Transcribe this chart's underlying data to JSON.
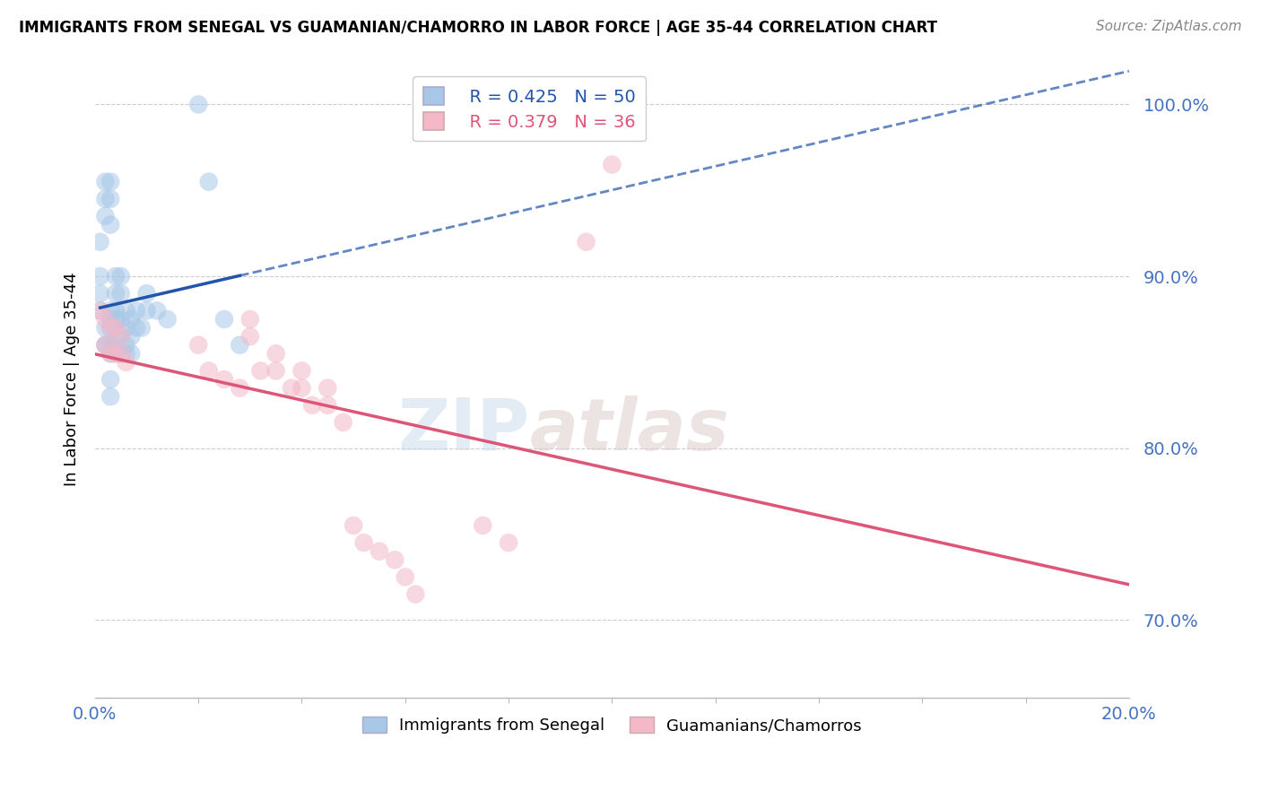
{
  "title": "IMMIGRANTS FROM SENEGAL VS GUAMANIAN/CHAMORRO IN LABOR FORCE | AGE 35-44 CORRELATION CHART",
  "source": "Source: ZipAtlas.com",
  "ylabel": "In Labor Force | Age 35-44",
  "ytick_labels": [
    "70.0%",
    "80.0%",
    "90.0%",
    "100.0%"
  ],
  "ytick_values": [
    0.7,
    0.8,
    0.9,
    1.0
  ],
  "xlim": [
    0.0,
    0.2
  ],
  "ylim": [
    0.655,
    1.025
  ],
  "blue_color": "#a8c8e8",
  "pink_color": "#f4b8c8",
  "blue_line_color": "#2255aa",
  "pink_line_color": "#dd5577",
  "legend_label_blue": "Immigrants from Senegal",
  "legend_label_pink": "Guamanians/Chamorros",
  "legend_blue_r": "R = 0.425",
  "legend_blue_n": "N = 50",
  "legend_pink_r": "R = 0.379",
  "legend_pink_n": "N = 36",
  "blue_x": [
    0.001,
    0.001,
    0.001,
    0.001,
    0.002,
    0.002,
    0.002,
    0.002,
    0.002,
    0.002,
    0.003,
    0.003,
    0.003,
    0.003,
    0.003,
    0.003,
    0.003,
    0.003,
    0.003,
    0.003,
    0.004,
    0.004,
    0.004,
    0.004,
    0.004,
    0.004,
    0.004,
    0.005,
    0.005,
    0.005,
    0.005,
    0.005,
    0.006,
    0.006,
    0.006,
    0.006,
    0.007,
    0.007,
    0.007,
    0.008,
    0.008,
    0.009,
    0.01,
    0.01,
    0.012,
    0.014,
    0.02,
    0.022,
    0.025,
    0.028
  ],
  "blue_y": [
    0.92,
    0.9,
    0.89,
    0.88,
    0.955,
    0.945,
    0.935,
    0.87,
    0.86,
    0.86,
    0.955,
    0.945,
    0.93,
    0.88,
    0.875,
    0.87,
    0.86,
    0.855,
    0.84,
    0.83,
    0.9,
    0.89,
    0.88,
    0.875,
    0.87,
    0.86,
    0.855,
    0.9,
    0.89,
    0.875,
    0.865,
    0.855,
    0.88,
    0.87,
    0.86,
    0.855,
    0.875,
    0.865,
    0.855,
    0.88,
    0.87,
    0.87,
    0.89,
    0.88,
    0.88,
    0.875,
    1.0,
    0.955,
    0.875,
    0.86
  ],
  "pink_x": [
    0.001,
    0.002,
    0.002,
    0.003,
    0.003,
    0.004,
    0.004,
    0.005,
    0.005,
    0.006,
    0.02,
    0.022,
    0.025,
    0.028,
    0.03,
    0.03,
    0.032,
    0.035,
    0.035,
    0.038,
    0.04,
    0.04,
    0.042,
    0.045,
    0.045,
    0.048,
    0.05,
    0.052,
    0.055,
    0.058,
    0.06,
    0.062,
    0.075,
    0.08,
    0.095,
    0.1
  ],
  "pink_y": [
    0.88,
    0.875,
    0.86,
    0.87,
    0.855,
    0.87,
    0.855,
    0.865,
    0.855,
    0.85,
    0.86,
    0.845,
    0.84,
    0.835,
    0.875,
    0.865,
    0.845,
    0.855,
    0.845,
    0.835,
    0.845,
    0.835,
    0.825,
    0.835,
    0.825,
    0.815,
    0.755,
    0.745,
    0.74,
    0.735,
    0.725,
    0.715,
    0.755,
    0.745,
    0.92,
    0.965
  ],
  "watermark_zip": "ZIP",
  "watermark_atlas": "atlas"
}
